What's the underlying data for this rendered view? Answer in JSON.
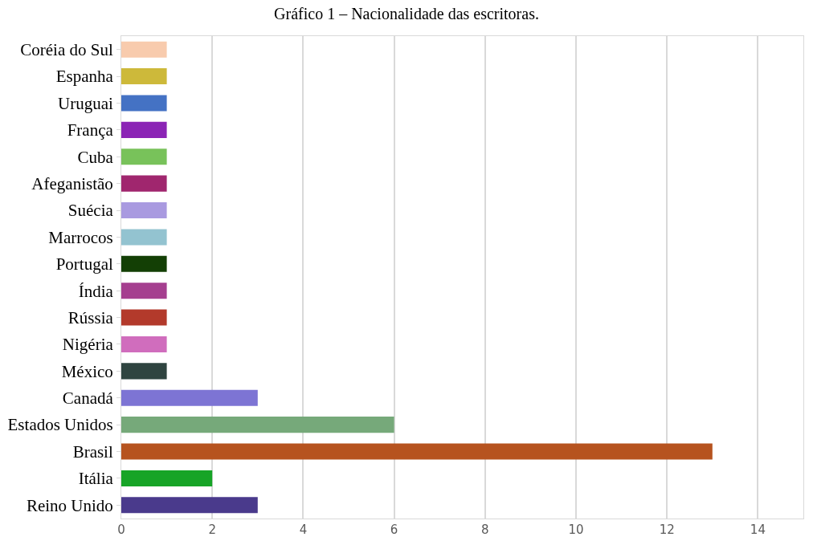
{
  "chart_data": {
    "type": "bar",
    "orientation": "horizontal",
    "title": "Gráfico 1 – Nacionalidade das escritoras.",
    "categories": [
      "Coréia do Sul",
      "Espanha",
      "Uruguai",
      "França",
      "Cuba",
      "Afeganistão",
      "Suécia",
      "Marrocos",
      "Portugal",
      "Índia",
      "Rússia",
      "Nigéria",
      "México",
      "Canadá",
      "Estados Unidos",
      "Brasil",
      "Itália",
      "Reino Unido"
    ],
    "values": [
      1,
      1,
      1,
      1,
      1,
      1,
      1,
      1,
      1,
      1,
      1,
      1,
      1,
      3,
      6,
      13,
      2,
      3
    ],
    "colors": [
      "#f8cbad",
      "#cdb93a",
      "#4472c4",
      "#8b24b5",
      "#78c25a",
      "#a0266e",
      "#a99ae0",
      "#93c3d0",
      "#133f05",
      "#a53f8f",
      "#b33a2b",
      "#d06dbd",
      "#2f4440",
      "#7d74d4",
      "#76a97a",
      "#b6531f",
      "#17a427",
      "#4a3a8c"
    ],
    "xlim": [
      0,
      15
    ],
    "xticks": [
      0,
      2,
      4,
      6,
      8,
      10,
      12,
      14
    ],
    "grid": "x"
  }
}
